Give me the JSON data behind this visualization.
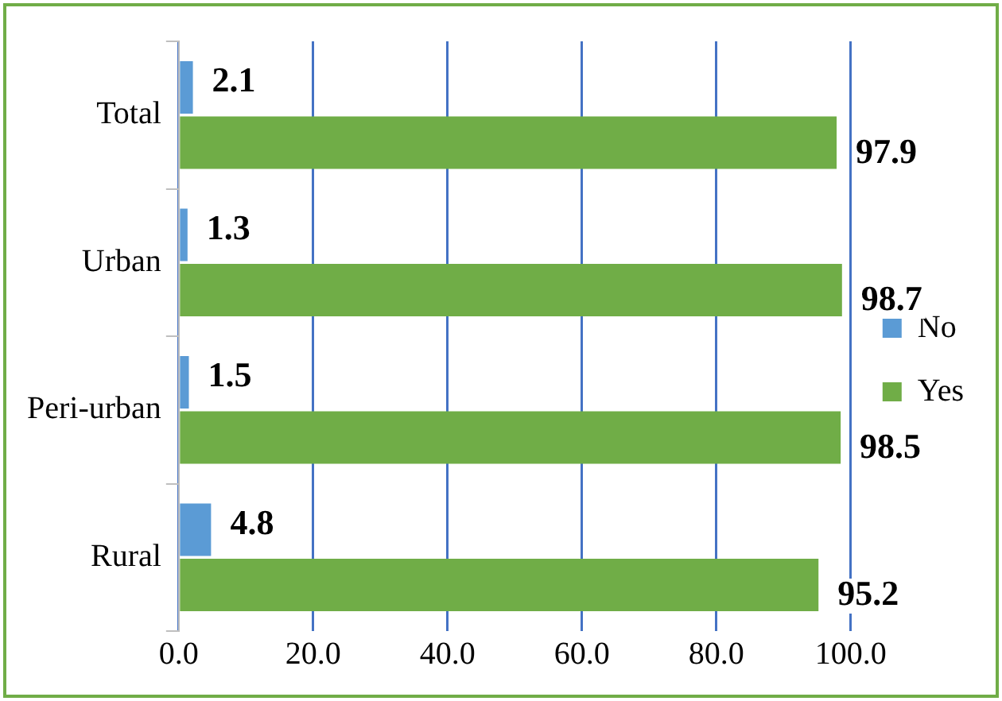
{
  "chart_data": {
    "type": "bar",
    "orientation": "horizontal",
    "categories": [
      "Total",
      "Urban",
      "Peri-urban",
      "Rural"
    ],
    "series": [
      {
        "name": "No",
        "color": "#5b9bd5",
        "values": [
          2.1,
          1.3,
          1.5,
          4.8
        ]
      },
      {
        "name": "Yes",
        "color": "#70ad47",
        "values": [
          97.9,
          98.7,
          98.5,
          95.2
        ]
      }
    ],
    "xlim": [
      0,
      100
    ],
    "xticks": [
      {
        "value": 0,
        "label": "0.0"
      },
      {
        "value": 20,
        "label": "20.0"
      },
      {
        "value": 40,
        "label": "40.0"
      },
      {
        "value": 60,
        "label": "60.0"
      },
      {
        "value": 80,
        "label": "80.0"
      },
      {
        "value": 100,
        "label": "100.0"
      }
    ],
    "grid": "x",
    "legend": "right",
    "data_labels": true
  }
}
